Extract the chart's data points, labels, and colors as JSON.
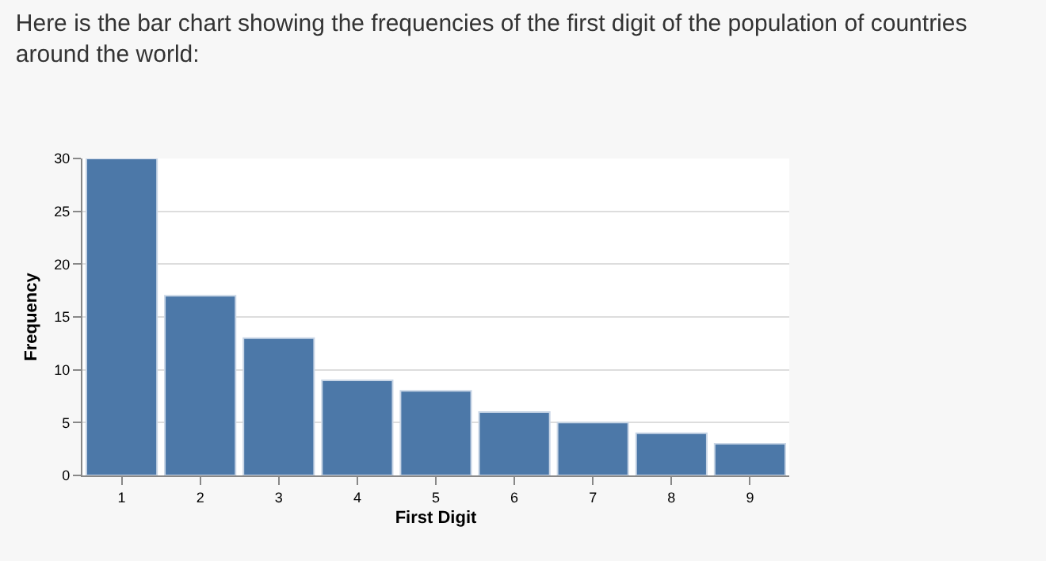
{
  "chart_data": {
    "type": "bar",
    "title": "Here is the bar chart showing the frequencies of the first digit of the population of countries around the world:",
    "xlabel": "First Digit",
    "ylabel": "Frequency",
    "categories": [
      "1",
      "2",
      "3",
      "4",
      "5",
      "6",
      "7",
      "8",
      "9"
    ],
    "values": [
      30,
      17,
      13,
      9,
      8,
      6,
      5,
      4,
      3
    ],
    "color": "#4c78a8",
    "ylim": [
      0,
      30
    ],
    "yticks": [
      0,
      5,
      10,
      15,
      20,
      25,
      30
    ],
    "grid": "y"
  }
}
